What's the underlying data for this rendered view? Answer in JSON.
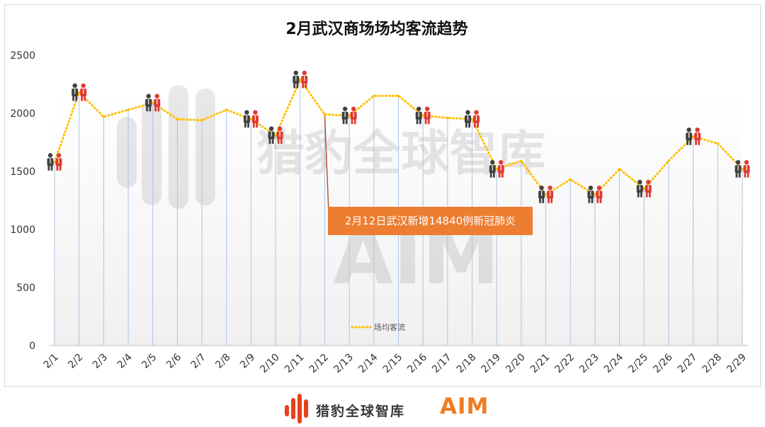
{
  "chart_data": {
    "type": "line",
    "title": "2月武汉商场场均客流趋势",
    "categories": [
      "2/1",
      "2/2",
      "2/3",
      "2/4",
      "2/5",
      "2/6",
      "2/7",
      "2/8",
      "2/9",
      "2/10",
      "2/11",
      "2/12",
      "2/13",
      "2/14",
      "2/15",
      "2/16",
      "2/17",
      "2/18",
      "2/19",
      "2/20",
      "2/21",
      "2/22",
      "2/23",
      "2/24",
      "2/25",
      "2/26",
      "2/27",
      "2/28",
      "2/29"
    ],
    "y_ticks": [
      "0",
      "500",
      "1000",
      "1500",
      "2000",
      "2500"
    ],
    "ylim": [
      0,
      2500
    ],
    "series": [
      {
        "name": "场均客流",
        "color": "#ffc000",
        "values": [
          1580,
          2180,
          1970,
          2030,
          2090,
          1950,
          1940,
          2030,
          1950,
          1810,
          2290,
          1990,
          1980,
          2150,
          2150,
          1980,
          1960,
          1950,
          1520,
          1590,
          1300,
          1430,
          1300,
          1520,
          1350,
          1590,
          1800,
          1740,
          1520
        ]
      }
    ],
    "marker_days": [
      "2/1",
      "2/2",
      "2/5",
      "2/9",
      "2/10",
      "2/11",
      "2/13",
      "2/16",
      "2/18",
      "2/19",
      "2/21",
      "2/23",
      "2/25",
      "2/27",
      "2/29"
    ],
    "legend_position": "bottom-center",
    "annotation": {
      "text": "2月12日武汉新增14840例新冠肺炎",
      "category": "2/12",
      "value": 1990
    },
    "watermark": {
      "brand": "猎豹全球智库",
      "logo": "AIM"
    }
  },
  "footer": {
    "brand": "猎豹全球智库",
    "logo": "AIM",
    "logo_color": "#f07c22"
  }
}
